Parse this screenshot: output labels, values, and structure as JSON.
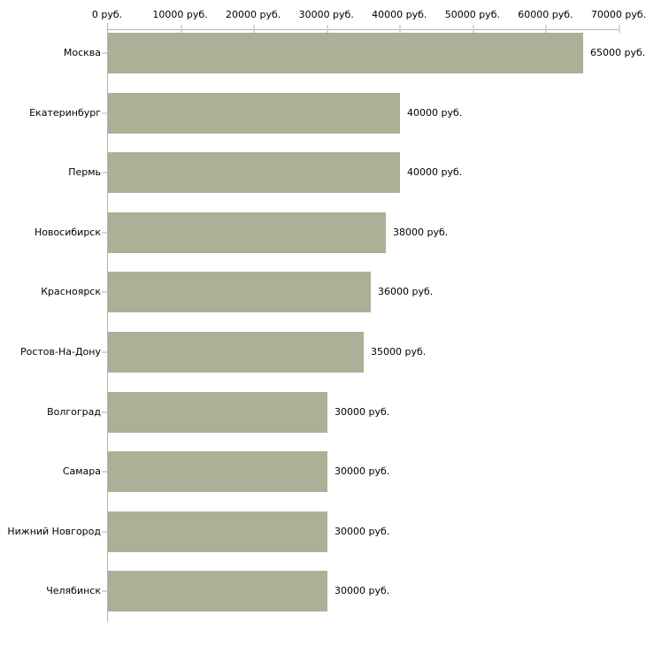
{
  "chart_data": {
    "type": "bar",
    "orientation": "horizontal",
    "title": "",
    "xlabel": "",
    "ylabel": "",
    "currency_suffix": "руб.",
    "categories": [
      "Москва",
      "Екатеринбург",
      "Пермь",
      "Новосибирск",
      "Красноярск",
      "Ростов-На-Дону",
      "Волгоград",
      "Самара",
      "Нижний Новгород",
      "Челябинск"
    ],
    "values": [
      65000,
      40000,
      40000,
      38000,
      36000,
      35000,
      30000,
      30000,
      30000,
      30000
    ],
    "value_labels": [
      "65000 руб.",
      "40000 руб.",
      "40000 руб.",
      "38000 руб.",
      "36000 руб.",
      "35000 руб.",
      "30000 руб.",
      "30000 руб.",
      "30000 руб.",
      "30000 руб."
    ],
    "x_tick_labels": [
      "0 руб.",
      "10000 руб.",
      "20000 руб.",
      "30000 руб.",
      "40000 руб.",
      "50000 руб.",
      "60000 руб.",
      "70000 руб."
    ],
    "x_tick_values": [
      0,
      10000,
      20000,
      30000,
      40000,
      50000,
      60000,
      70000
    ],
    "xlim": [
      0,
      70000
    ],
    "legend": "none",
    "grid": "off",
    "colors": {
      "bar": "#aab197",
      "axis_line": "#b3b3b3",
      "tick_mark": "#d8dcc4",
      "text": "#000000",
      "background": "#ffffff"
    }
  }
}
